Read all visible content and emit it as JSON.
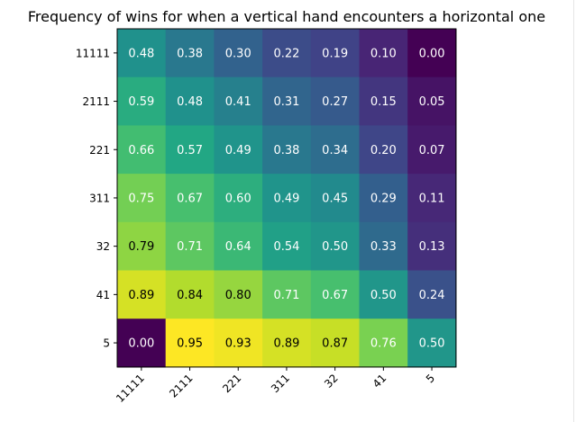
{
  "chart_data": {
    "type": "heatmap",
    "title": "Frequency of wins for when a vertical hand encounters a horizontal one",
    "xlabel": "",
    "ylabel": "",
    "x_categories": [
      "11111",
      "2111",
      "221",
      "311",
      "32",
      "41",
      "5"
    ],
    "y_categories": [
      "11111",
      "2111",
      "221",
      "311",
      "32",
      "41",
      "5"
    ],
    "values": [
      [
        0.48,
        0.38,
        0.3,
        0.22,
        0.19,
        0.1,
        0.0
      ],
      [
        0.59,
        0.48,
        0.41,
        0.31,
        0.27,
        0.15,
        0.05
      ],
      [
        0.66,
        0.57,
        0.49,
        0.38,
        0.34,
        0.2,
        0.07
      ],
      [
        0.75,
        0.67,
        0.6,
        0.49,
        0.45,
        0.29,
        0.11
      ],
      [
        0.79,
        0.71,
        0.64,
        0.54,
        0.5,
        0.33,
        0.13
      ],
      [
        0.89,
        0.84,
        0.8,
        0.71,
        0.67,
        0.5,
        0.24
      ],
      [
        0.0,
        0.95,
        0.93,
        0.89,
        0.87,
        0.76,
        0.5
      ]
    ],
    "cell_labels": [
      [
        "0.48",
        "0.38",
        "0.30",
        "0.22",
        "0.19",
        "0.10",
        "0.00"
      ],
      [
        "0.59",
        "0.48",
        "0.41",
        "0.31",
        "0.27",
        "0.15",
        "0.05"
      ],
      [
        "0.66",
        "0.57",
        "0.49",
        "0.38",
        "0.34",
        "0.20",
        "0.07"
      ],
      [
        "0.75",
        "0.67",
        "0.60",
        "0.49",
        "0.45",
        "0.29",
        "0.11"
      ],
      [
        "0.79",
        "0.71",
        "0.64",
        "0.54",
        "0.50",
        "0.33",
        "0.13"
      ],
      [
        "0.89",
        "0.84",
        "0.80",
        "0.71",
        "0.67",
        "0.50",
        "0.24"
      ],
      [
        "0.00",
        "0.95",
        "0.93",
        "0.89",
        "0.87",
        "0.76",
        "0.50"
      ]
    ],
    "value_range": [
      0,
      0.95
    ],
    "colormap": "viridis",
    "grid": false,
    "legend": "none",
    "x_tick_rotation": 45
  }
}
